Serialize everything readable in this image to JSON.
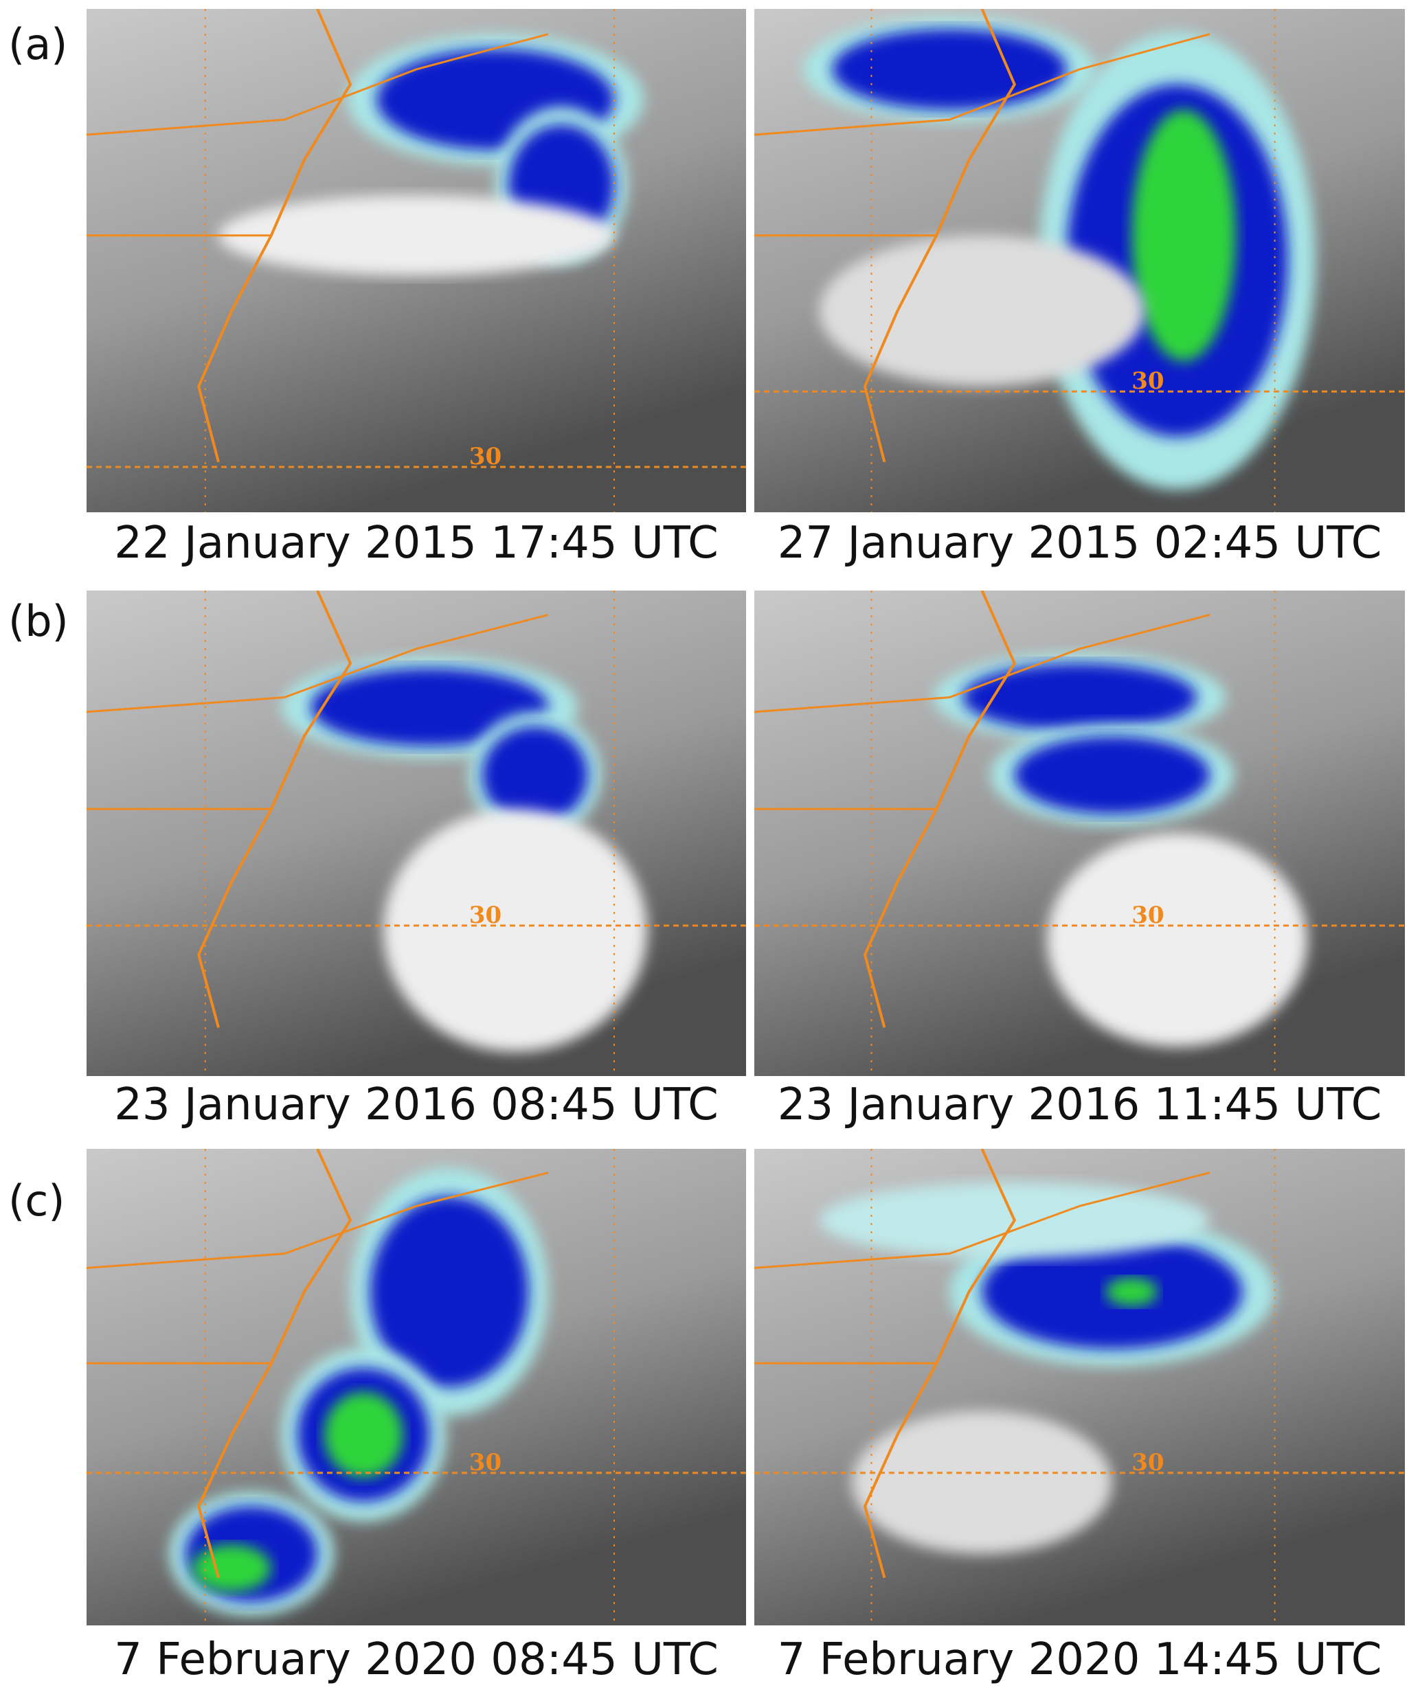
{
  "panels": [
    {
      "label": "(a)",
      "images": [
        {
          "caption": "22 January 2015 17:45 UTC",
          "lat_label": "30"
        },
        {
          "caption": "27 January 2015 02:45 UTC",
          "lat_label": "30"
        }
      ]
    },
    {
      "label": "(b)",
      "images": [
        {
          "caption": "23 January 2016 08:45 UTC",
          "lat_label": "30"
        },
        {
          "caption": "23 January 2016 11:45 UTC",
          "lat_label": "30"
        }
      ]
    },
    {
      "label": "(c)",
      "images": [
        {
          "caption": "7 February 2020 08:45 UTC",
          "lat_label": "30"
        },
        {
          "caption": "7 February 2020 14:45 UTC",
          "lat_label": "30"
        }
      ]
    }
  ]
}
